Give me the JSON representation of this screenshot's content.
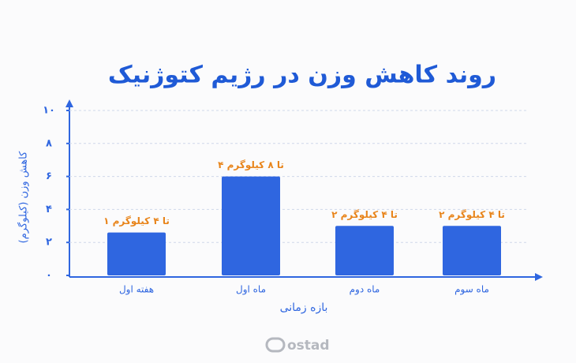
{
  "chart_data": {
    "type": "bar",
    "title": "روند کاهش وزن در رژیم کتوژنیک",
    "y_label": "کاهش وزن (کیلوگرم)",
    "x_label": "بازه زمانی",
    "categories": [
      "هفته اول",
      "ماه اول",
      "ماه دوم",
      "ماه سوم"
    ],
    "values": [
      2.6,
      6,
      3,
      3
    ],
    "value_labels": [
      "۱ تا ۴ کیلوگرم",
      "۴ تا ۸ کیلوگرم",
      "۲ تا ۴ کیلوگرم",
      "۲ تا ۴ کیلوگرم"
    ],
    "color": "#2f66e0",
    "ylim": [
      0,
      10
    ],
    "yticks": [
      {
        "value": 0,
        "label": "۰"
      },
      {
        "value": 2,
        "label": "۲"
      },
      {
        "value": 4,
        "label": "۴"
      },
      {
        "value": 6,
        "label": "۶"
      },
      {
        "value": 8,
        "label": "۸"
      },
      {
        "value": 10,
        "label": "۱۰"
      }
    ],
    "grid": true
  },
  "footer": {
    "logo": "ostad"
  }
}
